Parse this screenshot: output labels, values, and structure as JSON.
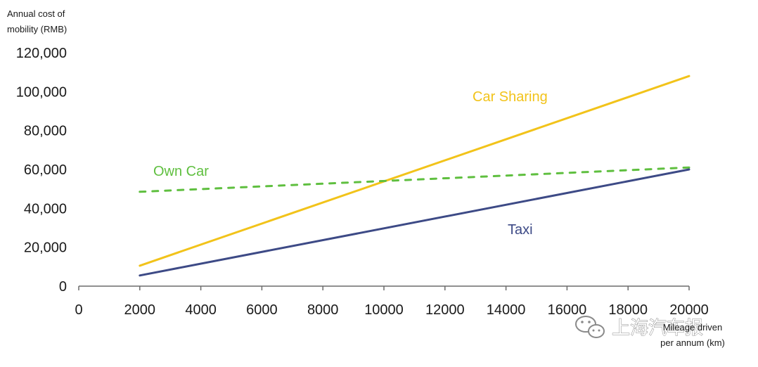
{
  "chart_data": {
    "type": "line",
    "ylabel": "Annual cost of mobility (RMB)",
    "ylabel_lines": [
      "Annual cost of",
      "mobility (RMB)"
    ],
    "xlabel": "Mileage driven per annum (km)",
    "xlabel_lines": [
      "Mileage driven",
      "per annum (km)"
    ],
    "xlim": [
      0,
      20000
    ],
    "ylim": [
      0,
      120000
    ],
    "x_ticks": [
      0,
      2000,
      4000,
      6000,
      8000,
      10000,
      12000,
      14000,
      16000,
      18000,
      20000
    ],
    "x_tick_labels": [
      "0",
      "2000",
      "4000",
      "6000",
      "8000",
      "10000",
      "12000",
      "14000",
      "16000",
      "18000",
      "20000"
    ],
    "y_ticks": [
      0,
      20000,
      40000,
      60000,
      80000,
      100000,
      120000
    ],
    "y_tick_labels": [
      "0",
      "20,000",
      "40,000",
      "60,000",
      "80,000",
      "100,000",
      "120,000"
    ],
    "grid": false,
    "legend": "none",
    "series": [
      {
        "name": "Car Sharing",
        "color": "#f2c31a",
        "style": "solid",
        "x": [
          2000,
          20000
        ],
        "y": [
          10500,
          108000
        ]
      },
      {
        "name": "Own Car",
        "color": "#5fbf3f",
        "style": "dashed",
        "x": [
          2000,
          20000
        ],
        "y": [
          48500,
          61000
        ]
      },
      {
        "name": "Taxi",
        "color": "#3d4a86",
        "style": "solid",
        "x": [
          2000,
          20000
        ],
        "y": [
          5500,
          60000
        ]
      }
    ]
  },
  "watermark": {
    "text": "上海汽车报",
    "icon": "wechat-icon"
  }
}
